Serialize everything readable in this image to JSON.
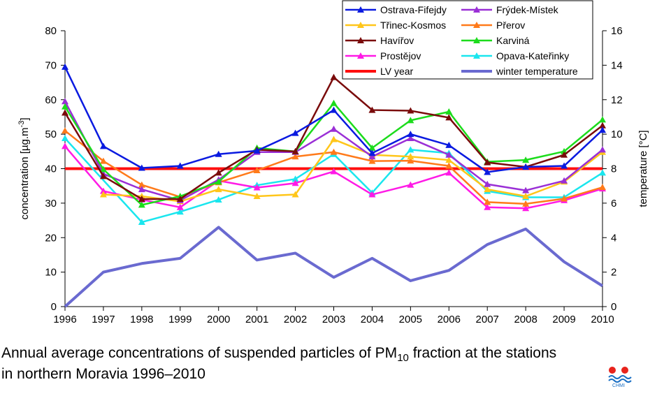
{
  "caption": {
    "line1_pre": "Annual average concentrations of suspended particles of PM",
    "line1_sub": "10",
    "line1_post": " fraction at the stations",
    "line2": "in northern Moravia 1996–2010"
  },
  "logo": {
    "text": "CHMI",
    "icon": "chmi-logo"
  },
  "chart_data": {
    "type": "line",
    "title": "",
    "xlabel": "",
    "ylabel": "concentration [µg.m-3]",
    "ylabel_main": "concentration [µg.m",
    "ylabel_sup": "-3",
    "ylabel_end": "]",
    "y2label": "temperature [°C]",
    "ylim": [
      0,
      80
    ],
    "y2lim": [
      0,
      16
    ],
    "yticks": [
      0,
      10,
      20,
      30,
      40,
      50,
      60,
      70,
      80
    ],
    "y2ticks": [
      0,
      2,
      4,
      6,
      8,
      10,
      12,
      14,
      16
    ],
    "categories": [
      "1996",
      "1997",
      "1998",
      "1999",
      "2000",
      "2001",
      "2002",
      "2003",
      "2004",
      "2005",
      "2006",
      "2007",
      "2008",
      "2009",
      "2010"
    ],
    "grid": false,
    "legend_position": "top-right",
    "series": [
      {
        "name": "Ostrava-Fifejdy",
        "color": "#0a1ae0",
        "marker": "triangle",
        "axis": "left",
        "values": [
          69.5,
          46.5,
          40.2,
          40.8,
          44.2,
          45.2,
          50.3,
          57.0,
          44.5,
          50.0,
          46.8,
          39.0,
          40.5,
          40.8,
          51.2
        ]
      },
      {
        "name": "Frýdek-Místek",
        "color": "#9a2fd6",
        "marker": "triangle",
        "axis": "left",
        "values": [
          59.5,
          38.5,
          34.0,
          30.8,
          36.8,
          44.8,
          44.8,
          51.5,
          43.5,
          48.8,
          44.0,
          35.5,
          33.7,
          36.5,
          45.5
        ]
      },
      {
        "name": "Třinec-Kosmos",
        "color": "#ffc61a",
        "marker": "triangle",
        "axis": "left",
        "values": [
          null,
          32.5,
          32.0,
          30.5,
          34.0,
          32.0,
          32.5,
          48.5,
          44.0,
          43.5,
          42.5,
          34.0,
          32.0,
          36.2,
          44.8
        ]
      },
      {
        "name": "Přerov",
        "color": "#ff7a1a",
        "marker": "triangle",
        "axis": "left",
        "values": [
          51.0,
          42.2,
          35.3,
          31.8,
          36.0,
          39.5,
          43.5,
          44.8,
          42.2,
          42.3,
          40.8,
          30.3,
          29.8,
          31.3,
          34.6
        ]
      },
      {
        "name": "Havířov",
        "color": "#7a0b0b",
        "marker": "triangle",
        "axis": "left",
        "values": [
          56.2,
          37.8,
          31.2,
          31.2,
          38.8,
          45.5,
          45.0,
          66.5,
          57.0,
          56.8,
          54.8,
          41.8,
          40.5,
          44.0,
          52.5
        ]
      },
      {
        "name": "Karviná",
        "color": "#1cdc1c",
        "marker": "triangle",
        "axis": "left",
        "values": [
          58.0,
          39.8,
          29.5,
          32.0,
          36.2,
          46.0,
          45.0,
          59.0,
          46.0,
          54.0,
          56.5,
          42.0,
          42.5,
          45.0,
          54.2
        ]
      },
      {
        "name": "Prostějov",
        "color": "#ff1ae6",
        "marker": "triangle",
        "axis": "left",
        "values": [
          46.5,
          33.5,
          31.0,
          28.8,
          36.5,
          34.5,
          35.8,
          39.2,
          32.5,
          35.3,
          38.8,
          28.8,
          28.5,
          30.8,
          34.2
        ]
      },
      {
        "name": "Opava-Kateřinky",
        "color": "#1ae6ee",
        "marker": "triangle",
        "axis": "left",
        "values": [
          48.8,
          null,
          24.5,
          27.5,
          31.0,
          35.2,
          37.0,
          44.2,
          33.0,
          45.5,
          44.5,
          33.5,
          31.7,
          31.7,
          38.8
        ]
      },
      {
        "name": "LV year",
        "color": "#ff0f0f",
        "marker": "none",
        "axis": "left",
        "values": [
          40,
          40,
          40,
          40,
          40,
          40,
          40,
          40,
          40,
          40,
          40,
          40,
          40,
          40,
          40
        ]
      },
      {
        "name": "winter temperature",
        "color": "#6a6ad0",
        "marker": "none",
        "axis": "right",
        "values": [
          0.0,
          2.0,
          2.5,
          2.8,
          4.6,
          2.7,
          3.1,
          1.7,
          2.8,
          1.5,
          2.1,
          3.6,
          4.5,
          2.6,
          1.2
        ]
      }
    ]
  }
}
